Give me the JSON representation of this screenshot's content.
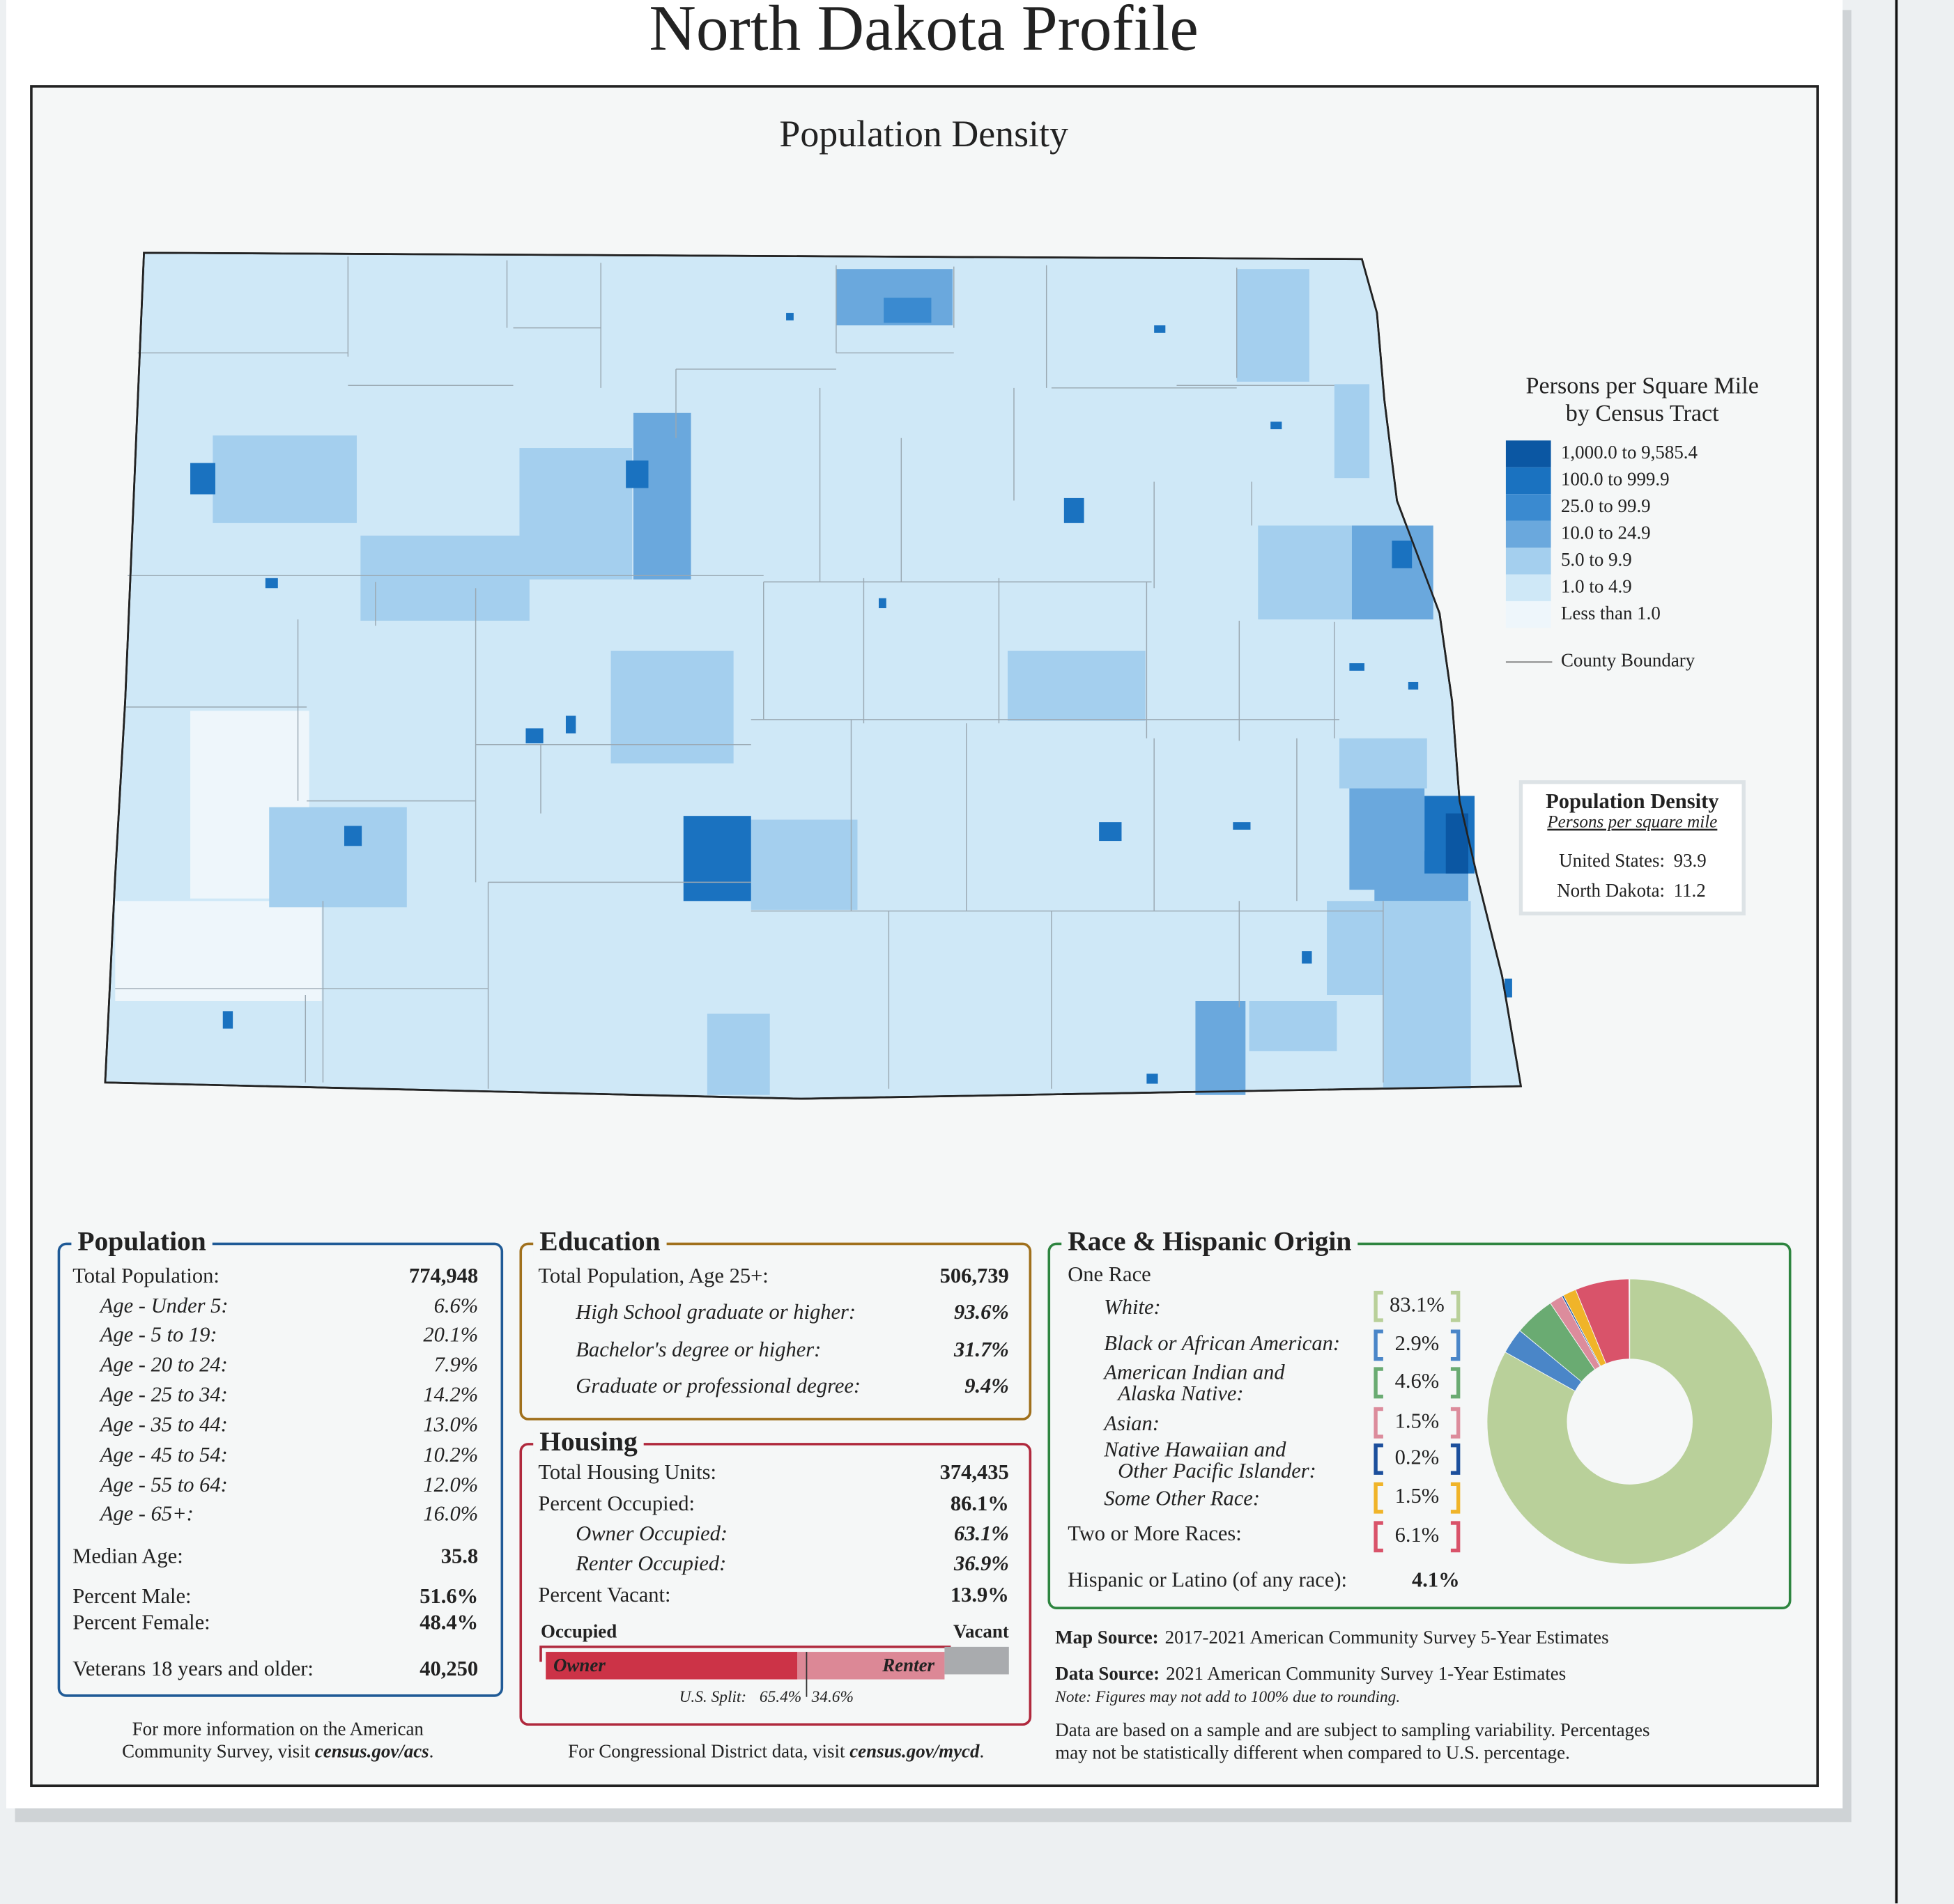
{
  "title": "North Dakota Profile",
  "map": {
    "title": "Population Density",
    "legend": {
      "title_lines": [
        "Persons per Square Mile",
        "by Census Tract"
      ],
      "items": [
        {
          "label": "1,000.0 to 9,585.4",
          "color": "#0b57a3"
        },
        {
          "label": "100.0 to 999.9",
          "color": "#1a72c0"
        },
        {
          "label": "25.0 to 99.9",
          "color": "#3a8ad0"
        },
        {
          "label": "10.0 to 24.9",
          "color": "#6aa8dd"
        },
        {
          "label": "5.0 to 9.9",
          "color": "#a4cfee"
        },
        {
          "label": "1.0 to 4.9",
          "color": "#cfe8f7"
        },
        {
          "label": "Less than 1.0",
          "color": "#eef6fb"
        }
      ],
      "boundary": "County Boundary"
    },
    "density_box": {
      "title": "Population Density",
      "subtitle": "Persons per square mile",
      "rows": [
        {
          "label": "United States:",
          "value": 93.9
        },
        {
          "label": "North Dakota:",
          "value": 11.2
        }
      ]
    }
  },
  "population": {
    "title": "Population",
    "rows": [
      {
        "label": "Total Population:",
        "value": 774948,
        "value_label": "774,948"
      },
      {
        "label": "Age - Under 5:",
        "value": 6.6,
        "value_label": "6.6%"
      },
      {
        "label": "Age - 5 to 19:",
        "value": 20.1,
        "value_label": "20.1%"
      },
      {
        "label": "Age - 20 to 24:",
        "value": 7.9,
        "value_label": "7.9%"
      },
      {
        "label": "Age - 25 to 34:",
        "value": 14.2,
        "value_label": "14.2%"
      },
      {
        "label": "Age - 35 to 44:",
        "value": 13.0,
        "value_label": "13.0%"
      },
      {
        "label": "Age - 45 to 54:",
        "value": 10.2,
        "value_label": "10.2%"
      },
      {
        "label": "Age - 55 to 64:",
        "value": 12.0,
        "value_label": "12.0%"
      },
      {
        "label": "Age - 65+:",
        "value": 16.0,
        "value_label": "16.0%"
      },
      {
        "label": "Median Age:",
        "value": 35.8,
        "value_label": "35.8"
      },
      {
        "label": "Percent Male:",
        "value": 51.6,
        "value_label": "51.6%"
      },
      {
        "label": "Percent Female:",
        "value": 48.4,
        "value_label": "48.4%"
      },
      {
        "label": "Veterans 18 years and older:",
        "value": 40250,
        "value_label": "40,250"
      }
    ]
  },
  "education": {
    "title": "Education",
    "rows": [
      {
        "label": "Total Population, Age 25+:",
        "value": 506739,
        "value_label": "506,739"
      },
      {
        "label": "High School  graduate or higher:",
        "value": 93.6,
        "value_label": "93.6%"
      },
      {
        "label": "Bachelor's degree or higher:",
        "value": 31.7,
        "value_label": "31.7%"
      },
      {
        "label": "Graduate or professional degree:",
        "value": 9.4,
        "value_label": "9.4%"
      }
    ]
  },
  "housing": {
    "title": "Housing",
    "rows": [
      {
        "label": "Total Housing Units:",
        "value": 374435,
        "value_label": "374,435"
      },
      {
        "label": "Percent Occupied:",
        "value": 86.1,
        "value_label": "86.1%"
      },
      {
        "label": "Owner Occupied:",
        "value": 63.1,
        "value_label": "63.1%"
      },
      {
        "label": "Renter Occupied:",
        "value": 36.9,
        "value_label": "36.9%"
      },
      {
        "label": "Percent Vacant:",
        "value": 13.9,
        "value_label": "13.9%"
      }
    ],
    "bar": {
      "occupied_label": "Occupied",
      "vacant_label": "Vacant",
      "owner_label": "Owner",
      "renter_label": "Renter",
      "us_split_prefix": "U.S. Split:",
      "us_split": [
        65.4,
        34.6
      ],
      "us_split_labels": [
        "65.4%",
        "34.6%"
      ]
    }
  },
  "race": {
    "title": "Race & Hispanic Origin",
    "one_race": "One Race",
    "items": [
      {
        "label": [
          "White:"
        ],
        "value": 83.1,
        "value_label": "83.1%",
        "color": "#b9d09a"
      },
      {
        "label": [
          "Black or African American:"
        ],
        "value": 2.9,
        "value_label": "2.9%",
        "color": "#4a86c8"
      },
      {
        "label": [
          "American Indian and",
          "Alaska Native:"
        ],
        "value": 4.6,
        "value_label": "4.6%",
        "color": "#6aab72"
      },
      {
        "label": [
          "Asian:"
        ],
        "value": 1.5,
        "value_label": "1.5%",
        "color": "#dc8c9c"
      },
      {
        "label": [
          "Native Hawaiian and",
          "Other Pacific Islander:"
        ],
        "value": 0.2,
        "value_label": "0.2%",
        "color": "#1c4f9c"
      },
      {
        "label": [
          "Some Other Race:"
        ],
        "value": 1.5,
        "value_label": "1.5%",
        "color": "#f0b429"
      },
      {
        "label": [
          "Two or More Races:"
        ],
        "value": 6.1,
        "value_label": "6.1%",
        "color": "#d9536a"
      }
    ],
    "hispanic": {
      "label": "Hispanic or Latino (of any race):",
      "value": 4.1,
      "value_label": "4.1%"
    }
  },
  "sources": {
    "map_source": {
      "label": "Map Source:",
      "text": "2017-2021 American Community Survey 5-Year Estimates"
    },
    "data_source": {
      "label": "Data Source:",
      "text": "2021 American Community Survey 1-Year Estimates"
    },
    "note": "Note: Figures may not add to 100% due to rounding.",
    "disclaimer": [
      "Data are based on a sample and are subject to sampling variability. Percentages",
      "may not be statistically different when compared to U.S. percentage."
    ]
  },
  "footer": {
    "acs": {
      "lines": [
        "For more information on the American",
        "Community Survey, visit "
      ],
      "link": "census.gov/acs",
      "end": "."
    },
    "cd": {
      "text": "For Congressional District data, visit ",
      "link": "census.gov/mycd",
      "end": "."
    }
  }
}
